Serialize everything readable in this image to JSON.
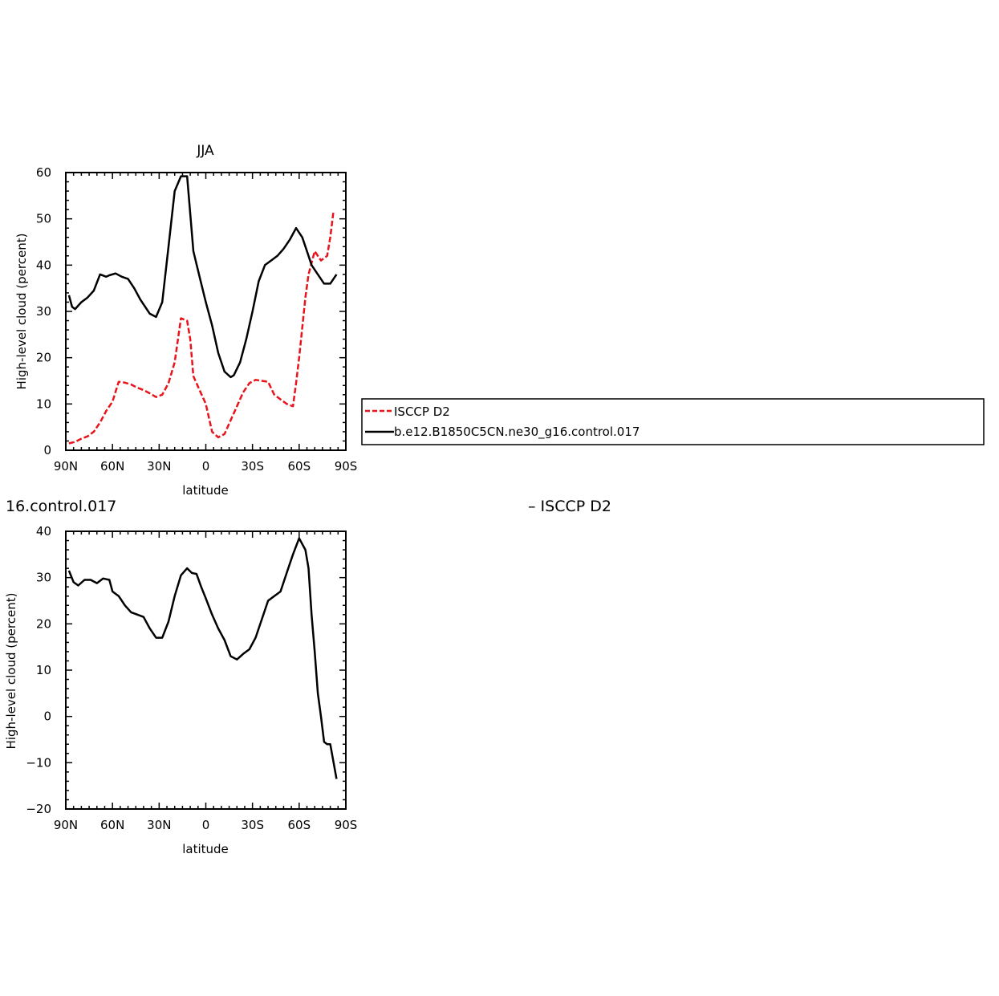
{
  "chart_data": [
    {
      "type": "line",
      "title": "JJA",
      "xlabel": "latitude",
      "ylabel": "High-level cloud (percent)",
      "xlim": [
        90,
        -90
      ],
      "ylim": [
        0,
        60
      ],
      "x_ticks": [
        90,
        60,
        30,
        0,
        -30,
        -60,
        -90
      ],
      "x_tick_labels": [
        "90N",
        "60N",
        "30N",
        "0",
        "30S",
        "60S",
        "90S"
      ],
      "y_ticks": [
        0,
        10,
        20,
        30,
        40,
        50,
        60
      ],
      "y_tick_labels": [
        "0",
        "10",
        "20",
        "30",
        "40",
        "50",
        "60"
      ],
      "legend": {
        "placement": "right",
        "entries": [
          {
            "label": "ISCCP D2",
            "color": "#e8141b",
            "dash": "dashed"
          },
          {
            "label": "b.e12.B1850C5CN.ne30_g16.control.017",
            "color": "#000000",
            "dash": "solid"
          }
        ]
      },
      "series": [
        {
          "name": "ISCCP D2",
          "color": "#e8141b",
          "x": [
            88,
            84,
            80,
            76,
            72,
            68,
            64,
            60,
            56,
            52,
            48,
            44,
            40,
            36,
            32,
            28,
            24,
            20,
            16,
            12,
            10,
            8,
            4,
            0,
            -4,
            -8,
            -12,
            -16,
            -20,
            -24,
            -28,
            -32,
            -36,
            -40,
            -44,
            -48,
            -52,
            -56,
            -58,
            -60,
            -64,
            -66,
            -70,
            -74,
            -78,
            -80,
            -82,
            -86,
            -88
          ],
          "values": [
            1.5,
            1.8,
            2.5,
            3.0,
            4.0,
            6.0,
            8.5,
            10.5,
            14.8,
            14.6,
            14.2,
            13.5,
            13.0,
            12.3,
            11.5,
            12.0,
            14.5,
            19.0,
            28.5,
            28.0,
            24.0,
            16.0,
            13.0,
            10.0,
            4.0,
            2.8,
            3.5,
            6.5,
            9.5,
            12.5,
            14.5,
            15.2,
            15.0,
            14.8,
            12.0,
            11.0,
            10.0,
            9.5,
            14.5,
            20.0,
            33.0,
            38.0,
            43.0,
            41.0,
            42.0,
            46.0,
            51.5,
            null,
            null
          ]
        },
        {
          "name": "b.e12.B1850C5CN.ne30_g16.control.017",
          "color": "#000000",
          "x": [
            88,
            86,
            84,
            80,
            76,
            72,
            68,
            64,
            62,
            58,
            54,
            50,
            46,
            42,
            36,
            32,
            28,
            24,
            20,
            16,
            12,
            8,
            4,
            0,
            -4,
            -8,
            -12,
            -16,
            -18,
            -22,
            -26,
            -30,
            -34,
            -38,
            -42,
            -46,
            -50,
            -54,
            -58,
            -62,
            -66,
            -68,
            -72,
            -76,
            -80,
            -84,
            -88
          ],
          "values": [
            33.5,
            31.0,
            30.5,
            32.0,
            33.0,
            34.5,
            38.0,
            37.5,
            37.8,
            38.2,
            37.5,
            37.0,
            35.0,
            32.5,
            29.5,
            28.8,
            32.0,
            44.0,
            56.0,
            59.2,
            59.2,
            43.0,
            37.5,
            32.0,
            27.0,
            21.0,
            17.0,
            15.8,
            16.2,
            19.0,
            24.0,
            30.0,
            36.5,
            40.0,
            41.0,
            42.0,
            43.5,
            45.5,
            48.0,
            46.0,
            42.0,
            40.0,
            38.0,
            36.0,
            36.0,
            38.0,
            null
          ]
        }
      ]
    },
    {
      "type": "line",
      "title_fragment_left": "16.control.017",
      "title_fragment_right": "– ISCCP D2",
      "xlabel": "latitude",
      "ylabel": "High-level cloud (percent)",
      "xlim": [
        90,
        -90
      ],
      "ylim": [
        -20,
        40
      ],
      "x_ticks": [
        90,
        60,
        30,
        0,
        -30,
        -60,
        -90
      ],
      "x_tick_labels": [
        "90N",
        "60N",
        "30N",
        "0",
        "30S",
        "60S",
        "90S"
      ],
      "y_ticks": [
        -20,
        -10,
        0,
        10,
        20,
        30,
        40
      ],
      "y_tick_labels": [
        "−20",
        "−10",
        "0",
        "10",
        "20",
        "30",
        "40"
      ],
      "series": [
        {
          "color": "#000000",
          "x": [
            88,
            85,
            82,
            78,
            74,
            70,
            66,
            62,
            60,
            56,
            52,
            48,
            44,
            40,
            36,
            32,
            28,
            24,
            20,
            16,
            12,
            9,
            6,
            3,
            0,
            -4,
            -8,
            -12,
            -16,
            -20,
            -24,
            -28,
            -32,
            -36,
            -40,
            -44,
            -48,
            -52,
            -56,
            -60,
            -64,
            -66,
            -68,
            -70,
            -72,
            -74,
            -76,
            -78,
            -80,
            -84,
            -86,
            -88
          ],
          "values": [
            31.5,
            29.0,
            28.3,
            29.5,
            29.5,
            28.8,
            29.8,
            29.5,
            27.0,
            26.0,
            24.0,
            22.5,
            22.0,
            21.5,
            19.0,
            17.0,
            17.0,
            20.5,
            26.0,
            30.5,
            32.0,
            31.0,
            30.8,
            28.0,
            25.5,
            22.0,
            19.0,
            16.5,
            13.0,
            12.3,
            13.5,
            14.5,
            17.0,
            21.0,
            25.0,
            26.0,
            27.0,
            31.0,
            35.0,
            38.5,
            36.0,
            32.0,
            22.0,
            14.0,
            5.0,
            0.0,
            -5.5,
            -6.0,
            -6.0,
            -13.5,
            null,
            null
          ]
        }
      ]
    }
  ]
}
